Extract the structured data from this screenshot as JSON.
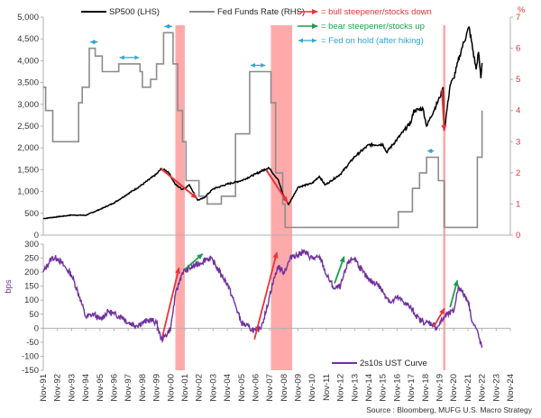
{
  "chart_data": [
    {
      "type": "line",
      "panel": "top",
      "x_range": [
        "1991-11",
        "2024-11"
      ],
      "left_axis": {
        "label": "",
        "ticks": [
          "0",
          "500",
          "1,000",
          "1,500",
          "2,000",
          "2,500",
          "3,000",
          "3,500",
          "4,000",
          "4,500",
          "5,000"
        ],
        "ylim": [
          0,
          5000
        ]
      },
      "right_axis": {
        "unit": "%",
        "ticks": [
          "0",
          "1",
          "2",
          "3",
          "4",
          "5",
          "6",
          "7"
        ],
        "ylim": [
          0,
          7
        ],
        "tick_color": "#e8333a"
      },
      "legend_placement": "top",
      "series": [
        {
          "name": "SP500  (LHS)",
          "axis": "left",
          "color": "#000000",
          "points": [
            [
              "1991-11",
              380
            ],
            [
              "1992-11",
              420
            ],
            [
              "1993-11",
              460
            ],
            [
              "1994-11",
              455
            ],
            [
              "1995-11",
              590
            ],
            [
              "1996-11",
              740
            ],
            [
              "1997-11",
              950
            ],
            [
              "1998-11",
              1160
            ],
            [
              "1999-11",
              1400
            ],
            [
              "2000-03",
              1520
            ],
            [
              "2000-09",
              1450
            ],
            [
              "2001-03",
              1160
            ],
            [
              "2001-09",
              1050
            ],
            [
              "2002-03",
              1150
            ],
            [
              "2002-10",
              800
            ],
            [
              "2003-03",
              850
            ],
            [
              "2003-11",
              1060
            ],
            [
              "2004-11",
              1170
            ],
            [
              "2005-11",
              1250
            ],
            [
              "2006-11",
              1400
            ],
            [
              "2007-10",
              1550
            ],
            [
              "2008-06",
              1280
            ],
            [
              "2008-10",
              950
            ],
            [
              "2009-03",
              700
            ],
            [
              "2009-11",
              1100
            ],
            [
              "2010-11",
              1190
            ],
            [
              "2011-05",
              1350
            ],
            [
              "2011-10",
              1150
            ],
            [
              "2012-11",
              1400
            ],
            [
              "2013-11",
              1800
            ],
            [
              "2014-11",
              2070
            ],
            [
              "2015-11",
              2080
            ],
            [
              "2016-02",
              1900
            ],
            [
              "2016-11",
              2200
            ],
            [
              "2017-11",
              2600
            ],
            [
              "2018-01",
              2850
            ],
            [
              "2018-09",
              2900
            ],
            [
              "2018-12",
              2500
            ],
            [
              "2019-11",
              3150
            ],
            [
              "2020-02",
              3380
            ],
            [
              "2020-03",
              2400
            ],
            [
              "2020-08",
              3450
            ],
            [
              "2020-11",
              3600
            ],
            [
              "2021-06",
              4300
            ],
            [
              "2021-12",
              4770
            ],
            [
              "2022-06",
              3800
            ],
            [
              "2022-08",
              4200
            ],
            [
              "2022-10",
              3600
            ],
            [
              "2022-11",
              3950
            ]
          ]
        },
        {
          "name": "Fed Funds Rate  (RHS)",
          "axis": "right",
          "color": "#8c8c8c",
          "points": [
            [
              "1991-11",
              4.75
            ],
            [
              "1992-01",
              4.0
            ],
            [
              "1992-07",
              3.0
            ],
            [
              "1994-01",
              3.0
            ],
            [
              "1994-05",
              4.25
            ],
            [
              "1994-08",
              4.75
            ],
            [
              "1995-02",
              6.0
            ],
            [
              "1995-07",
              5.75
            ],
            [
              "1996-01",
              5.25
            ],
            [
              "1997-03",
              5.5
            ],
            [
              "1998-09",
              5.25
            ],
            [
              "1998-11",
              4.75
            ],
            [
              "1999-06",
              5.0
            ],
            [
              "1999-11",
              5.5
            ],
            [
              "2000-05",
              6.5
            ],
            [
              "2001-01",
              5.5
            ],
            [
              "2001-05",
              4.0
            ],
            [
              "2001-09",
              3.0
            ],
            [
              "2001-12",
              1.75
            ],
            [
              "2002-11",
              1.25
            ],
            [
              "2003-06",
              1.0
            ],
            [
              "2004-06",
              1.25
            ],
            [
              "2005-06",
              3.25
            ],
            [
              "2006-06",
              5.25
            ],
            [
              "2007-08",
              5.25
            ],
            [
              "2007-12",
              4.25
            ],
            [
              "2008-04",
              2.0
            ],
            [
              "2008-10",
              1.0
            ],
            [
              "2008-12",
              0.25
            ],
            [
              "2015-12",
              0.25
            ],
            [
              "2016-12",
              0.75
            ],
            [
              "2017-12",
              1.5
            ],
            [
              "2018-06",
              2.0
            ],
            [
              "2018-12",
              2.5
            ],
            [
              "2019-07",
              2.5
            ],
            [
              "2019-10",
              1.75
            ],
            [
              "2020-03",
              0.25
            ],
            [
              "2022-03",
              0.25
            ],
            [
              "2022-07",
              2.5
            ],
            [
              "2022-11",
              4.0
            ]
          ]
        }
      ],
      "annotations": [
        {
          "kind": "bull steepener/stocks down",
          "color": "red",
          "from": [
            "2000-03",
            1520
          ],
          "to": [
            "2002-09",
            850
          ]
        },
        {
          "kind": "bull steepener/stocks down",
          "color": "red",
          "from": [
            "2007-08",
            1500
          ],
          "to": [
            "2009-02",
            750
          ]
        },
        {
          "kind": "bull steepener/stocks down",
          "color": "red",
          "from": [
            "2020-01",
            3350
          ],
          "to": [
            "2020-03",
            2400
          ]
        },
        {
          "kind": "Fed on hold (after hiking)",
          "color": "blue",
          "from": "1995-02",
          "to": "1995-10",
          "level": 6.0
        },
        {
          "kind": "Fed on hold (after hiking)",
          "color": "blue",
          "from": "1997-03",
          "to": "1998-09",
          "level": 5.5
        },
        {
          "kind": "Fed on hold (after hiking)",
          "color": "blue",
          "from": "2000-05",
          "to": "2001-01",
          "level": 6.5
        },
        {
          "kind": "Fed on hold (after hiking)",
          "color": "blue",
          "from": "2006-06",
          "to": "2007-08",
          "level": 5.25
        },
        {
          "kind": "Fed on hold (after hiking)",
          "color": "blue",
          "from": "2018-12",
          "to": "2019-07",
          "level": 2.5
        }
      ]
    },
    {
      "type": "line",
      "panel": "bottom",
      "y_axis": {
        "unit": "bps",
        "ticks": [
          "-150",
          "-100",
          "-50",
          "0",
          "50",
          "100",
          "150",
          "200",
          "250",
          "300"
        ],
        "ylim": [
          -150,
          300
        ]
      },
      "x_labels": [
        "Nov-91",
        "Nov-92",
        "Nov-93",
        "Nov-94",
        "Nov-95",
        "Nov-96",
        "Nov-97",
        "Nov-98",
        "Nov-99",
        "Nov-00",
        "Nov-01",
        "Nov-02",
        "Nov-03",
        "Nov-04",
        "Nov-05",
        "Nov-06",
        "Nov-07",
        "Nov-08",
        "Nov-09",
        "Nov-10",
        "Nov-11",
        "Nov-12",
        "Nov-13",
        "Nov-14",
        "Nov-15",
        "Nov-16",
        "Nov-17",
        "Nov-18",
        "Nov-19",
        "Nov-20",
        "Nov-21",
        "Nov-22",
        "Nov-23",
        "Nov-24"
      ],
      "legend_placement": "bottom-right",
      "series": [
        {
          "name": "2s10s UST Curve",
          "color": "#7030a0",
          "points": [
            [
              "1991-11",
              200
            ],
            [
              "1992-06",
              250
            ],
            [
              "1992-11",
              250
            ],
            [
              "1993-06",
              215
            ],
            [
              "1993-11",
              190
            ],
            [
              "1994-06",
              110
            ],
            [
              "1994-11",
              40
            ],
            [
              "1995-06",
              50
            ],
            [
              "1995-11",
              30
            ],
            [
              "1996-06",
              60
            ],
            [
              "1996-11",
              50
            ],
            [
              "1997-06",
              40
            ],
            [
              "1997-11",
              20
            ],
            [
              "1998-06",
              10
            ],
            [
              "1998-11",
              20
            ],
            [
              "1999-06",
              30
            ],
            [
              "1999-11",
              20
            ],
            [
              "2000-03",
              -40
            ],
            [
              "2000-06",
              -30
            ],
            [
              "2000-11",
              0
            ],
            [
              "2001-03",
              120
            ],
            [
              "2001-09",
              200
            ],
            [
              "2002-06",
              220
            ],
            [
              "2002-11",
              230
            ],
            [
              "2003-06",
              250
            ],
            [
              "2003-11",
              240
            ],
            [
              "2004-06",
              190
            ],
            [
              "2004-11",
              160
            ],
            [
              "2005-06",
              80
            ],
            [
              "2005-11",
              20
            ],
            [
              "2006-06",
              0
            ],
            [
              "2006-11",
              -10
            ],
            [
              "2007-03",
              0
            ],
            [
              "2007-08",
              60
            ],
            [
              "2007-11",
              120
            ],
            [
              "2008-03",
              180
            ],
            [
              "2008-06",
              220
            ],
            [
              "2008-11",
              200
            ],
            [
              "2009-06",
              260
            ],
            [
              "2009-11",
              260
            ],
            [
              "2010-03",
              275
            ],
            [
              "2010-11",
              250
            ],
            [
              "2011-06",
              250
            ],
            [
              "2011-11",
              190
            ],
            [
              "2012-06",
              140
            ],
            [
              "2012-11",
              150
            ],
            [
              "2013-06",
              240
            ],
            [
              "2013-11",
              250
            ],
            [
              "2014-06",
              200
            ],
            [
              "2014-11",
              170
            ],
            [
              "2015-06",
              160
            ],
            [
              "2015-11",
              130
            ],
            [
              "2016-06",
              90
            ],
            [
              "2016-11",
              110
            ],
            [
              "2017-06",
              90
            ],
            [
              "2017-11",
              70
            ],
            [
              "2018-06",
              30
            ],
            [
              "2018-11",
              20
            ],
            [
              "2019-06",
              15
            ],
            [
              "2019-08",
              0
            ],
            [
              "2019-11",
              15
            ],
            [
              "2020-03",
              40
            ],
            [
              "2020-06",
              50
            ],
            [
              "2020-11",
              60
            ],
            [
              "2021-03",
              150
            ],
            [
              "2021-06",
              130
            ],
            [
              "2021-11",
              100
            ],
            [
              "2022-03",
              20
            ],
            [
              "2022-06",
              0
            ],
            [
              "2022-11",
              -70
            ]
          ]
        }
      ],
      "annotations": [
        {
          "kind": "bull steepener/stocks down",
          "color": "red",
          "from": [
            "2000-04",
            -30
          ],
          "to": [
            "2001-06",
            215
          ]
        },
        {
          "kind": "bear steepener/stocks up",
          "color": "green",
          "from": [
            "2001-11",
            210
          ],
          "to": [
            "2003-02",
            265
          ]
        },
        {
          "kind": "bull steepener/stocks down",
          "color": "red",
          "from": [
            "2006-10",
            -40
          ],
          "to": [
            "2008-05",
            270
          ]
        },
        {
          "kind": "bear steepener/stocks up",
          "color": "green",
          "from": [
            "2012-06",
            160
          ],
          "to": [
            "2013-02",
            255
          ]
        },
        {
          "kind": "bull steepener/stocks down",
          "color": "red",
          "from": [
            "2019-06",
            5
          ],
          "to": [
            "2020-03",
            70
          ]
        },
        {
          "kind": "bear steepener/stocks up",
          "color": "green",
          "from": [
            "2020-08",
            75
          ],
          "to": [
            "2021-02",
            170
          ]
        }
      ]
    }
  ],
  "recession_bands": [
    {
      "from": "2001-03",
      "to": "2001-11"
    },
    {
      "from": "2007-12",
      "to": "2009-06"
    },
    {
      "from": "2020-02",
      "to": "2020-04"
    }
  ],
  "legend": {
    "sp500": "SP500  (LHS)",
    "ffr": "Fed Funds Rate  (RHS)",
    "bull": "= bull steepener/stocks down",
    "bear": "= bear steepener/stocks up",
    "hold": "= Fed on hold (after hiking)"
  },
  "colors": {
    "sp500": "#000000",
    "ffr": "#8c8c8c",
    "curve": "#7030a0",
    "recession": "#ff9b9b",
    "bull_arrow": "#e8333a",
    "bear_arrow": "#1a9e4b",
    "hold_arrow": "#2ba5d8",
    "right_axis": "#e8333a",
    "bps_label": "#7030a0"
  },
  "source": "Source : Bloomberg, MUFG U.S. Macro Strategy"
}
